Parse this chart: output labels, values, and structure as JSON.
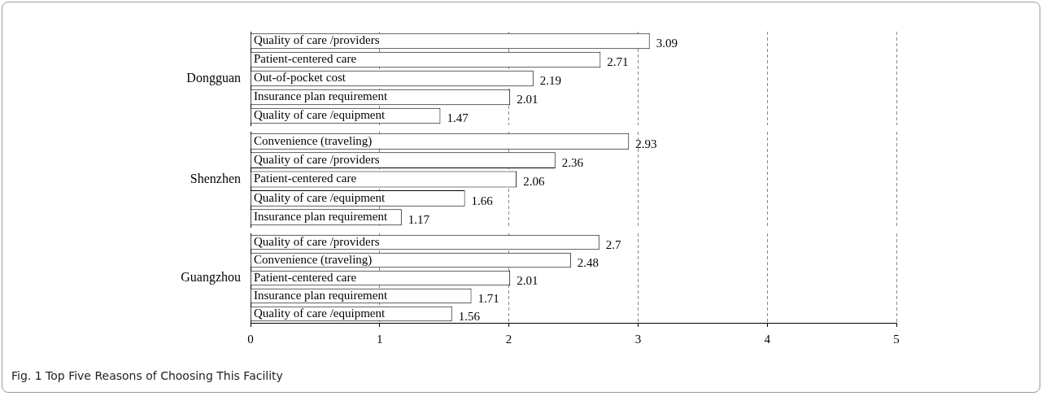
{
  "chart_data": [
    {
      "type": "bar",
      "orientation": "horizontal",
      "ylabel": "Dongguan",
      "categories": [
        "Quality of care /providers",
        "Patient-centered care",
        "Out-of-pocket cost",
        "Insurance plan requirement",
        "Quality of care /equipment"
      ],
      "values": [
        3.09,
        2.71,
        2.19,
        2.01,
        1.47
      ],
      "color": "#ffffff",
      "xlim": [
        0,
        5
      ],
      "xticks": [
        0,
        1,
        2,
        3,
        4,
        5
      ],
      "grid": "x",
      "data_labels": true,
      "tick_labels": "y",
      "legend": false
    },
    {
      "type": "bar",
      "orientation": "horizontal",
      "ylabel": "Shenzhen",
      "categories": [
        "Convenience (traveling)",
        "Quality of care /providers",
        "Patient-centered care",
        "Quality of care /equipment",
        "Insurance plan requirement"
      ],
      "values": [
        2.93,
        2.36,
        2.06,
        1.66,
        1.17
      ],
      "color": "#ffffff",
      "xlim": [
        0,
        5
      ],
      "xticks": [
        0,
        1,
        2,
        3,
        4,
        5
      ],
      "grid": "x",
      "data_labels": true,
      "tick_labels": "y",
      "legend": false
    },
    {
      "type": "bar",
      "orientation": "horizontal",
      "ylabel": "Guangzhou",
      "categories": [
        "Quality of care /providers",
        "Convenience (traveling)",
        "Patient-centered care",
        "Insurance plan requirement",
        "Quality of care /equipment"
      ],
      "values": [
        2.7,
        2.48,
        2.01,
        1.71,
        1.56
      ],
      "color": "#ffffff",
      "xlim": [
        0,
        5
      ],
      "xticks": [
        0,
        1,
        2,
        3,
        4,
        5
      ],
      "grid": "x",
      "data_labels": true,
      "legend": false,
      "annotations": [
        "Fig. 1 Top Five Reasons of Choosing This Facility"
      ]
    }
  ]
}
